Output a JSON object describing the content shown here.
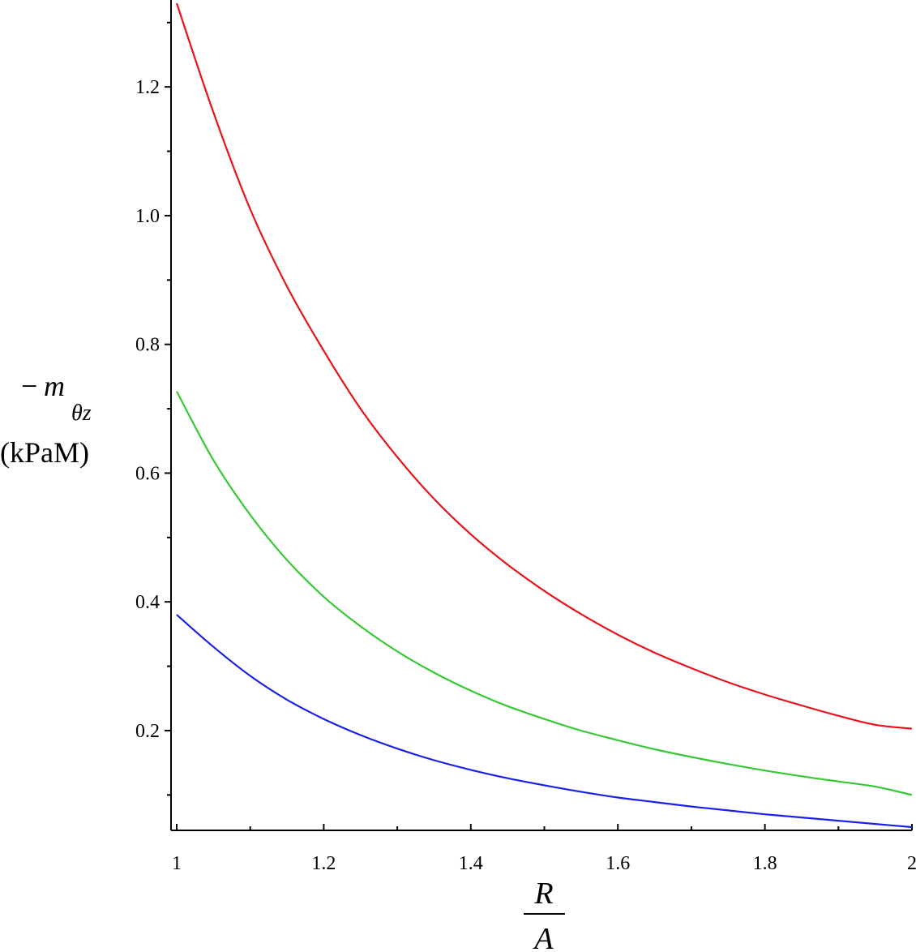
{
  "chart_data": {
    "type": "line",
    "title": "",
    "xlabel": {
      "numerator": "R",
      "denominator": "A"
    },
    "ylabel": {
      "prefix": "−",
      "symbol": "m",
      "subscript": "θz",
      "unit": "(kPaM)"
    },
    "xlim": [
      1,
      2
    ],
    "ylim": [
      0.045,
      1.335
    ],
    "xticks": [
      {
        "value": 1,
        "label": "1"
      },
      {
        "value": 1.2,
        "label": "1.2"
      },
      {
        "value": 1.4,
        "label": "1.4"
      },
      {
        "value": 1.6,
        "label": "1.6"
      },
      {
        "value": 1.8,
        "label": "1.8"
      },
      {
        "value": 2,
        "label": "2"
      }
    ],
    "yticks": [
      {
        "value": 0.2,
        "label": "0.2"
      },
      {
        "value": 0.4,
        "label": "0.4"
      },
      {
        "value": 0.6,
        "label": "0.6"
      },
      {
        "value": 0.8,
        "label": "0.8"
      },
      {
        "value": 1.0,
        "label": "1.0"
      },
      {
        "value": 1.2,
        "label": "1.2"
      }
    ],
    "x": [
      1.0,
      1.05,
      1.1,
      1.15,
      1.2,
      1.25,
      1.3,
      1.35,
      1.4,
      1.45,
      1.5,
      1.55,
      1.6,
      1.65,
      1.7,
      1.75,
      1.8,
      1.85,
      1.9,
      1.95,
      2.0
    ],
    "series": [
      {
        "color": "#e8121a",
        "values": [
          1.33,
          1.16,
          1.01,
          0.89,
          0.79,
          0.7,
          0.625,
          0.56,
          0.505,
          0.458,
          0.417,
          0.381,
          0.349,
          0.321,
          0.297,
          0.275,
          0.256,
          0.239,
          0.223,
          0.209,
          0.203
        ]
      },
      {
        "color": "#36c935",
        "values": [
          0.727,
          0.62,
          0.535,
          0.465,
          0.408,
          0.362,
          0.323,
          0.29,
          0.262,
          0.238,
          0.218,
          0.2,
          0.185,
          0.171,
          0.159,
          0.148,
          0.138,
          0.129,
          0.121,
          0.113,
          0.1
        ]
      },
      {
        "color": "#1b20e8",
        "values": [
          0.38,
          0.33,
          0.285,
          0.248,
          0.218,
          0.193,
          0.172,
          0.154,
          0.139,
          0.126,
          0.115,
          0.105,
          0.096,
          0.089,
          0.082,
          0.076,
          0.07,
          0.065,
          0.06,
          0.055,
          0.05
        ]
      }
    ],
    "grid": false,
    "legend": "none"
  }
}
